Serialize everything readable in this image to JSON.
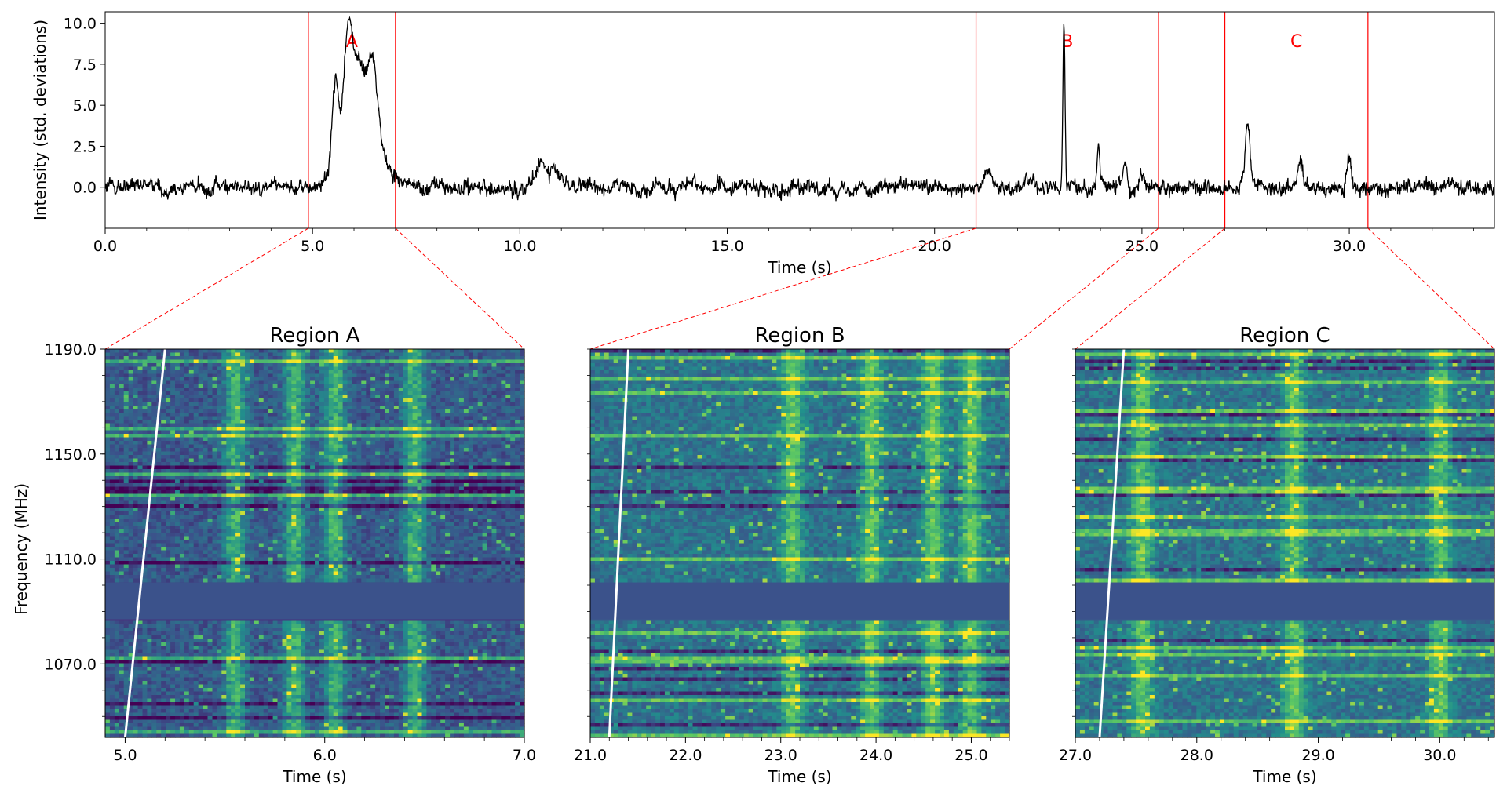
{
  "chart_data": [
    {
      "type": "line",
      "xlabel": "Time (s)",
      "ylabel": "Intensity (std. deviations)",
      "xlim": [
        0,
        33.5
      ],
      "ylim": [
        -2.5,
        10.7
      ],
      "xticks": [
        0,
        5,
        10,
        15,
        20,
        25,
        30
      ],
      "xtick_labels": [
        "0.0",
        "5.0",
        "10.0",
        "15.0",
        "20.0",
        "25.0",
        "30.0"
      ],
      "yticks": [
        0,
        2.5,
        5,
        7.5,
        10
      ],
      "ytick_labels": [
        "0.0",
        "2.5",
        "5.0",
        "7.5",
        "10.0"
      ],
      "line_color": "#000000",
      "baseline": 0,
      "features": [
        {
          "time": 5.55,
          "peak": 5.5,
          "width": 0.08
        },
        {
          "time": 5.85,
          "peak": 6.9,
          "width": 0.1
        },
        {
          "time": 6.1,
          "peak": 4.5,
          "width": 0.15
        },
        {
          "time": 6.45,
          "peak": 4.7,
          "width": 0.12
        },
        {
          "time": 6.25,
          "peak": 3.2,
          "width": 0.45
        },
        {
          "time": 10.5,
          "peak": 1.3,
          "width": 0.1
        },
        {
          "time": 10.8,
          "peak": 1.1,
          "width": 0.15
        },
        {
          "time": 21.3,
          "peak": 0.9,
          "width": 0.12
        },
        {
          "time": 22.3,
          "peak": 0.7,
          "width": 0.1
        },
        {
          "time": 23.12,
          "peak": 10.0,
          "width": 0.025
        },
        {
          "time": 23.95,
          "peak": 2.8,
          "width": 0.03
        },
        {
          "time": 24.6,
          "peak": 1.5,
          "width": 0.05
        },
        {
          "time": 25.0,
          "peak": 1.3,
          "width": 0.05
        },
        {
          "time": 27.55,
          "peak": 3.5,
          "width": 0.06
        },
        {
          "time": 28.8,
          "peak": 1.5,
          "width": 0.06
        },
        {
          "time": 30.0,
          "peak": 1.8,
          "width": 0.05
        }
      ],
      "regions": [
        {
          "label": "A",
          "start": 4.9,
          "end": 7.0
        },
        {
          "label": "B",
          "start": 21.0,
          "end": 25.4
        },
        {
          "label": "C",
          "start": 27.0,
          "end": 30.45
        }
      ],
      "region_color": "#ff0000"
    },
    {
      "type": "heatmap",
      "title": "Region A",
      "xlabel": "Time (s)",
      "ylabel": "Frequency (MHz)",
      "xlim": [
        4.9,
        7.0
      ],
      "ylim": [
        1042,
        1190
      ],
      "xticks": [
        5,
        6,
        7
      ],
      "xtick_labels": [
        "5.0",
        "6.0",
        "7.0"
      ],
      "yticks": [
        1190,
        1150,
        1110,
        1070
      ],
      "ytick_labels": [
        "1190.0",
        "1150.0",
        "1110.0",
        "1070.0"
      ],
      "masked_band": [
        1087,
        1101
      ],
      "dispersion_line": [
        [
          5.0,
          1042
        ],
        [
          5.2,
          1190
        ]
      ],
      "bursts": [
        5.55,
        5.85,
        6.05,
        6.45
      ]
    },
    {
      "type": "heatmap",
      "title": "Region B",
      "xlabel": "Time (s)",
      "ylabel": "",
      "xlim": [
        21.0,
        25.4
      ],
      "ylim": [
        1042,
        1190
      ],
      "xticks": [
        21,
        22,
        23,
        24,
        25
      ],
      "xtick_labels": [
        "21.0",
        "22.0",
        "23.0",
        "24.0",
        "25.0"
      ],
      "masked_band": [
        1087,
        1101
      ],
      "dispersion_line": [
        [
          21.2,
          1042
        ],
        [
          21.4,
          1190
        ]
      ],
      "bursts": [
        23.12,
        23.95,
        24.6,
        25.0
      ]
    },
    {
      "type": "heatmap",
      "title": "Region C",
      "xlabel": "Time (s)",
      "ylabel": "",
      "xlim": [
        27.0,
        30.45
      ],
      "ylim": [
        1042,
        1190
      ],
      "xticks": [
        27,
        28,
        29,
        30
      ],
      "xtick_labels": [
        "27.0",
        "28.0",
        "29.0",
        "30.0"
      ],
      "masked_band": [
        1087,
        1101
      ],
      "dispersion_line": [
        [
          27.2,
          1042
        ],
        [
          27.4,
          1190
        ]
      ],
      "bursts": [
        27.55,
        28.8,
        30.0
      ]
    }
  ],
  "colors": {
    "heat_low": "#440154",
    "heat_mid": "#21918c",
    "heat_high": "#fde725",
    "masked": "#3b528b"
  }
}
